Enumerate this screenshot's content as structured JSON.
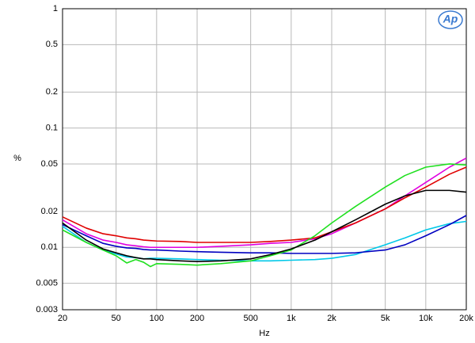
{
  "chart_data": {
    "type": "line",
    "xlabel": "Hz",
    "ylabel": "%",
    "logo": "Ap",
    "xscale": "log",
    "yscale": "log",
    "grid": true,
    "xlim": [
      20,
      20000
    ],
    "ylim": [
      0.003,
      1
    ],
    "xticks": [
      20,
      50,
      100,
      200,
      500,
      {
        "value": 1000,
        "label": "1k"
      },
      {
        "value": 2000,
        "label": "2k"
      },
      {
        "value": 5000,
        "label": "5k"
      },
      {
        "value": 10000,
        "label": "10k"
      },
      {
        "value": 20000,
        "label": "20k"
      }
    ],
    "yticks": [
      1,
      0.5,
      0.2,
      0.1,
      0.05,
      0.02,
      0.01,
      0.005,
      0.003
    ],
    "x": [
      20,
      30,
      40,
      50,
      60,
      70,
      80,
      90,
      100,
      150,
      200,
      300,
      500,
      700,
      1000,
      1500,
      2000,
      3000,
      5000,
      7000,
      10000,
      15000,
      20000
    ],
    "series": [
      {
        "color": "#00c8e8",
        "values": [
          0.015,
          0.011,
          0.0095,
          0.0088,
          0.0083,
          0.0082,
          0.008,
          0.0081,
          0.0081,
          0.008,
          0.0079,
          0.0078,
          0.0077,
          0.0077,
          0.0078,
          0.0079,
          0.0081,
          0.0087,
          0.0105,
          0.012,
          0.014,
          0.0158,
          0.0165
        ]
      },
      {
        "color": "#0000c0",
        "values": [
          0.0155,
          0.0125,
          0.0108,
          0.0102,
          0.0099,
          0.0098,
          0.0096,
          0.0095,
          0.0095,
          0.0093,
          0.0092,
          0.0091,
          0.009,
          0.009,
          0.0089,
          0.0089,
          0.0089,
          0.009,
          0.0095,
          0.0105,
          0.0125,
          0.0155,
          0.0185
        ]
      },
      {
        "color": "#e000e0",
        "values": [
          0.017,
          0.013,
          0.0115,
          0.011,
          0.0105,
          0.0103,
          0.0101,
          0.01,
          0.01,
          0.01,
          0.01,
          0.0102,
          0.0105,
          0.0108,
          0.011,
          0.0118,
          0.013,
          0.016,
          0.021,
          0.027,
          0.035,
          0.047,
          0.056
        ]
      },
      {
        "color": "#e00000",
        "values": [
          0.018,
          0.0145,
          0.013,
          0.0125,
          0.012,
          0.0118,
          0.0115,
          0.0114,
          0.0113,
          0.0112,
          0.011,
          0.011,
          0.011,
          0.0112,
          0.0115,
          0.012,
          0.0135,
          0.016,
          0.021,
          0.026,
          0.032,
          0.041,
          0.047
        ]
      },
      {
        "color": "#20e020",
        "values": [
          0.014,
          0.011,
          0.0095,
          0.0085,
          0.0074,
          0.0079,
          0.0075,
          0.0069,
          0.0073,
          0.0072,
          0.0071,
          0.0073,
          0.0077,
          0.0085,
          0.0095,
          0.0125,
          0.016,
          0.022,
          0.032,
          0.04,
          0.047,
          0.05,
          0.049
        ]
      },
      {
        "color": "#000000",
        "values": [
          0.016,
          0.0115,
          0.0097,
          0.009,
          0.0085,
          0.0082,
          0.008,
          0.008,
          0.0079,
          0.0077,
          0.0076,
          0.0077,
          0.008,
          0.0087,
          0.0097,
          0.0115,
          0.0135,
          0.017,
          0.023,
          0.027,
          0.03,
          0.03,
          0.029
        ]
      }
    ]
  }
}
